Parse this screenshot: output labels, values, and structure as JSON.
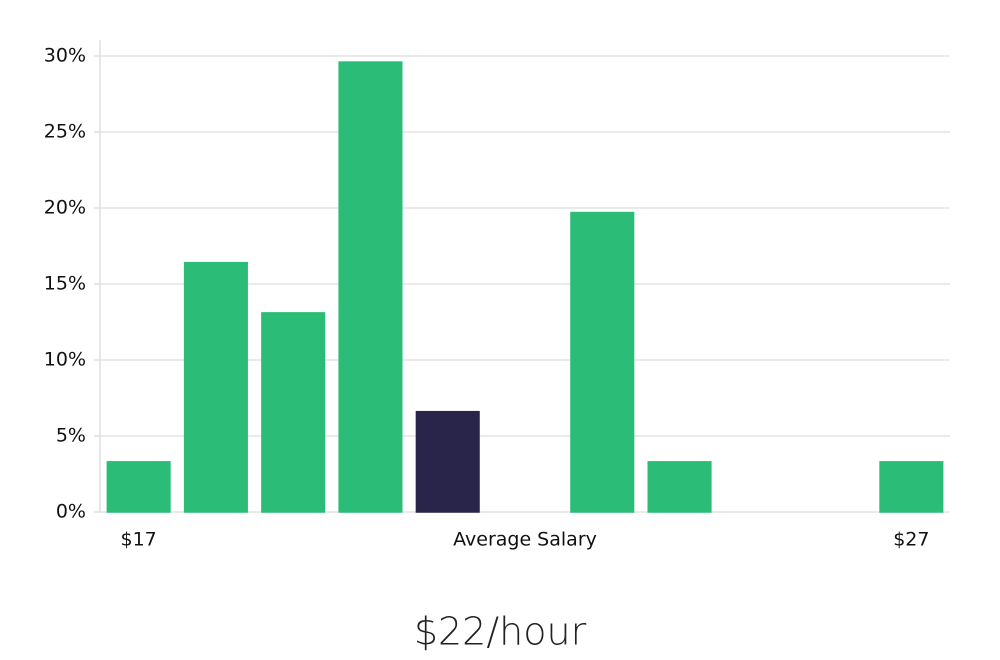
{
  "chart_data": {
    "type": "bar",
    "categories": [
      "$17",
      null,
      null,
      null,
      null,
      null,
      null,
      null,
      null,
      null,
      "$27"
    ],
    "values": [
      3.3,
      16.4,
      13.1,
      29.6,
      6.6,
      0,
      19.7,
      3.3,
      0,
      0,
      3.3
    ],
    "colors": [
      "#2bbd77",
      "#2bbd77",
      "#2bbd77",
      "#2bbd77",
      "#29254a",
      "#2bbd77",
      "#2bbd77",
      "#2bbd77",
      "#2bbd77",
      "#2bbd77",
      "#2bbd77"
    ],
    "x_label": "Average Salary",
    "annotation": "$22/hour",
    "ylim": [
      0,
      30
    ],
    "yticks": [
      {
        "value": 0,
        "label": "0%"
      },
      {
        "value": 5,
        "label": "5%"
      },
      {
        "value": 10,
        "label": "10%"
      },
      {
        "value": 15,
        "label": "15%"
      },
      {
        "value": 20,
        "label": "20%"
      },
      {
        "value": 25,
        "label": "25%"
      },
      {
        "value": 30,
        "label": "30%"
      }
    ],
    "grid": true
  }
}
